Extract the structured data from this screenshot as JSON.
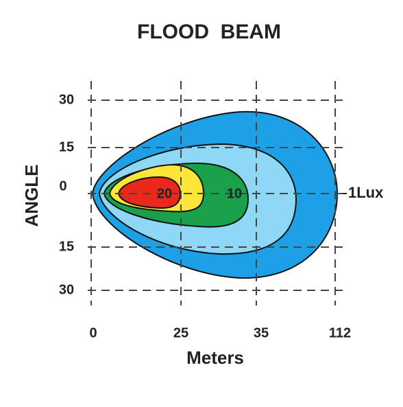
{
  "title": "FLOOD  BEAM",
  "axes": {
    "y_label": "ANGLE",
    "x_label": "Meters",
    "y_ticks": [
      "30",
      "15",
      "0",
      "15",
      "30"
    ],
    "x_ticks": [
      "0",
      "25",
      "35",
      "112"
    ]
  },
  "contours": [
    {
      "label": "20"
    },
    {
      "label": "10"
    },
    {
      "label": "1Lux"
    }
  ]
}
